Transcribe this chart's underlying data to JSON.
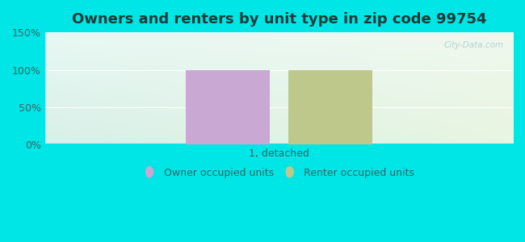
{
  "title": "Owners and renters by unit type in zip code 99754",
  "categories": [
    "1, detached"
  ],
  "owner_values": [
    100
  ],
  "renter_values": [
    100
  ],
  "owner_color": "#c9a8d4",
  "renter_color": "#bdc88a",
  "ylim": [
    0,
    150
  ],
  "yticks": [
    0,
    50,
    100,
    150
  ],
  "ytick_labels": [
    "0%",
    "50%",
    "100%",
    "150%"
  ],
  "bar_width": 0.18,
  "watermark": "City-Data.com",
  "legend_owner": "Owner occupied units",
  "legend_renter": "Renter occupied units",
  "title_fontsize": 13,
  "tick_fontsize": 9,
  "xlabel_fontsize": 9,
  "title_color": "#1a3a3a",
  "tick_color": "#336666",
  "label_color": "#336666",
  "fig_bg": "#00e5e5",
  "grad_topleft": "#e8f8f4",
  "grad_topright": "#f0f8ee",
  "grad_botleft": "#d8f0e8",
  "grad_botright": "#e8f5e0"
}
